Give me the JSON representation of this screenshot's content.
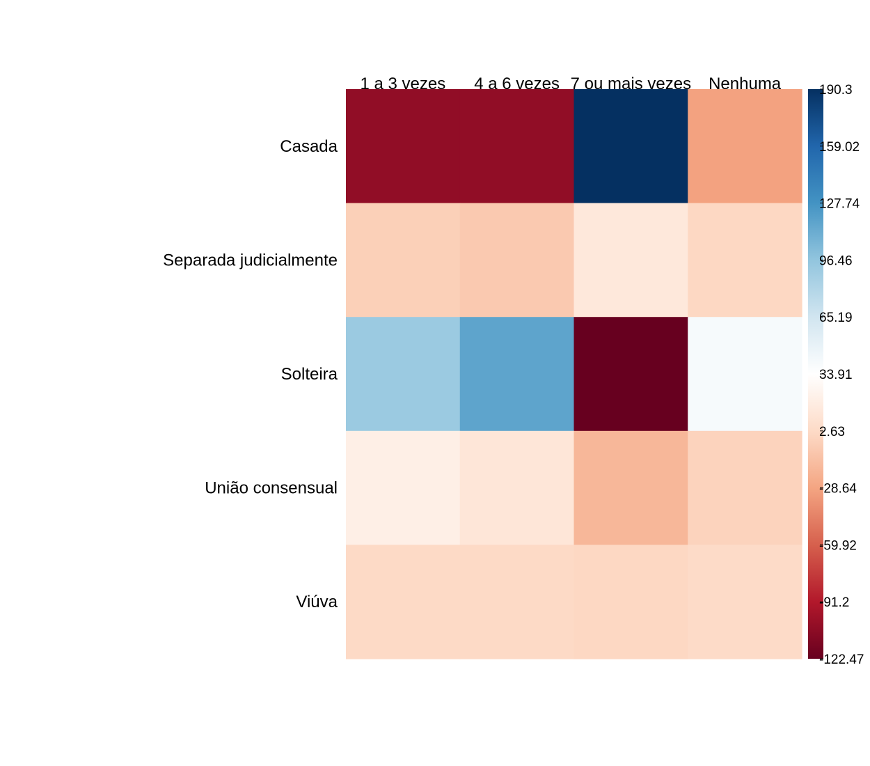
{
  "chart_data": {
    "type": "heatmap",
    "x_categories": [
      "1 a 3 vezes",
      "4 a 6 vezes",
      "7 ou mais vezes",
      "Nenhuma"
    ],
    "y_categories": [
      "Casada",
      "Separada judicialmente",
      "Solteira",
      "União consensual",
      "Viúva"
    ],
    "values": [
      [
        -105,
        -105,
        190.3,
        -30
      ],
      [
        -4,
        -8,
        14,
        1
      ],
      [
        92,
        117,
        -122.47,
        40
      ],
      [
        20,
        12,
        -18,
        -2
      ],
      [
        2,
        2,
        1,
        3
      ]
    ],
    "colorbar": {
      "min": -122.47,
      "max": 190.3,
      "tick_values": [
        190.3,
        159.02,
        127.74,
        96.46,
        65.19,
        33.91,
        2.63,
        -28.64,
        -59.92,
        -91.2,
        -122.47
      ],
      "tick_labels": [
        "190.3",
        "159.02",
        "127.74",
        "96.46",
        "65.19",
        "33.91",
        "2.63",
        "-28.64",
        "-59.92",
        "-91.2",
        "-122.47"
      ]
    },
    "colorscale": [
      "#67001F",
      "#B2182B",
      "#D6604D",
      "#F4A582",
      "#FDDBC7",
      "#FFFFFF",
      "#D1E5F0",
      "#92C5DE",
      "#4393C3",
      "#2166AC",
      "#053061"
    ],
    "legend_position": "right",
    "grid": false
  }
}
